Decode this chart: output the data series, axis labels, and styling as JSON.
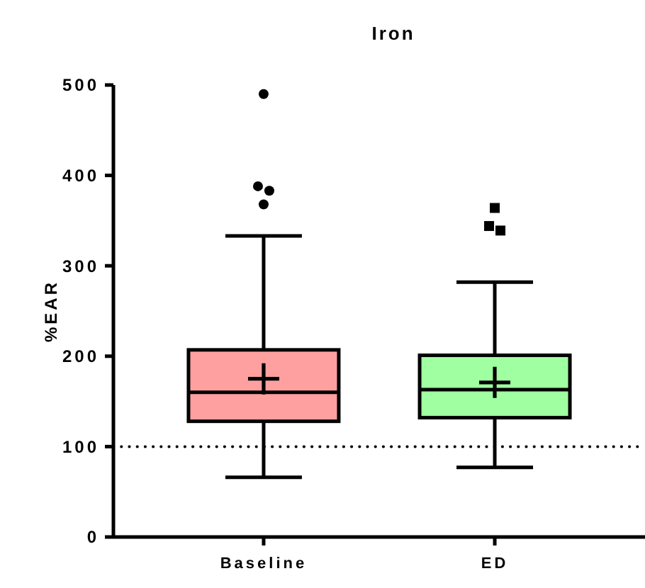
{
  "chart_data": {
    "type": "box",
    "title": "Iron",
    "ylabel": "%EAR",
    "categories": [
      "Baseline",
      "ED"
    ],
    "series": [
      {
        "color": "#ffa0a0",
        "marker": "circle",
        "boxes": [
          {
            "low": 66,
            "q1": 128,
            "median": 160,
            "q3": 207,
            "high": 333,
            "mean": 175,
            "outliers": [
              490,
              388,
              383,
              368
            ]
          },
          null
        ]
      },
      {
        "color": "#a0ffa0",
        "marker": "square",
        "boxes": [
          null,
          {
            "low": 77,
            "q1": 132,
            "median": 163,
            "q3": 201,
            "high": 282,
            "mean": 171,
            "outliers": [
              364,
              344,
              339
            ]
          }
        ]
      }
    ],
    "ylim": [
      0,
      500
    ],
    "yticks": [
      0,
      100,
      200,
      300,
      400,
      500
    ],
    "grid": false,
    "ref_lines": [
      {
        "axis": "y",
        "value": 100,
        "line_style": "dotted"
      }
    ]
  }
}
